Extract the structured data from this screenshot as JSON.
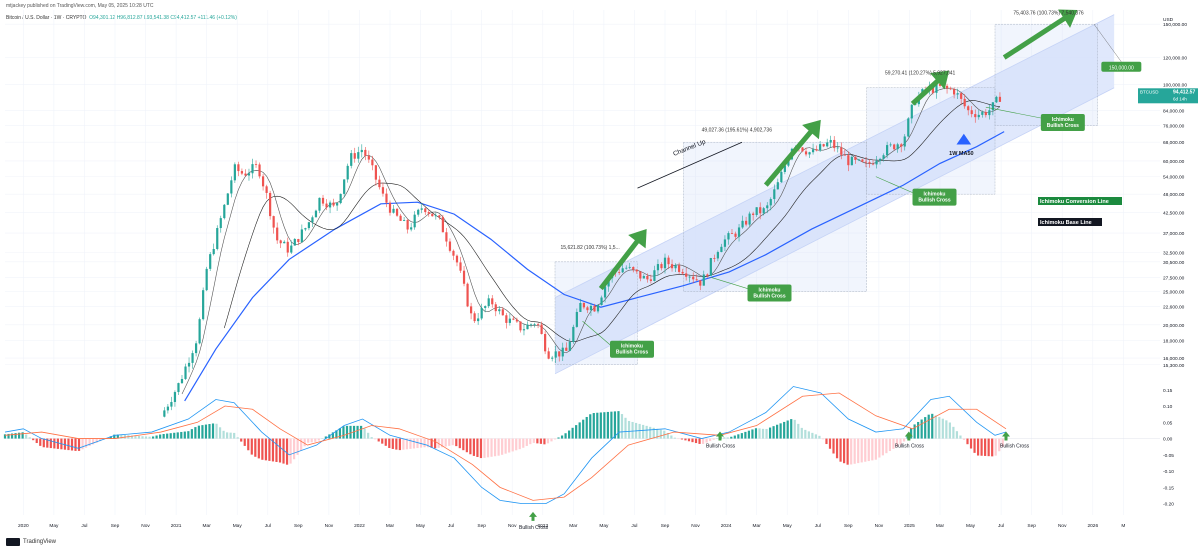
{
  "header": {
    "publisher": "mtjackey published on TradingView.com, May 05, 2025 10:28 UTC",
    "symbol_line": "Bitcoin / U.S. Dollar · 1W · CRYPTO",
    "ohlc": "O94,301.12  H96,812.87  L93,541.38  C94,412.57  +111.46 (+0.12%)"
  },
  "footer": {
    "brand": "TradingView"
  },
  "colors": {
    "up": "#26a69a",
    "down": "#ef5350",
    "ma50": "#2962ff",
    "channel": "#dbe4fb",
    "arrow": "#43a047",
    "macd": "#2196f3",
    "signal": "#ff7043"
  },
  "chart_data": {
    "type": "candlestick",
    "price_scale": "log",
    "currency": "USD",
    "y_ticks": [
      "150,000.00",
      "120,000.00",
      "100,000.00",
      "84,000.00",
      "76,000.00",
      "68,000.00",
      "60,000.00",
      "54,000.00",
      "48,000.00",
      "42,500.00",
      "37,000.00",
      "32,500.00",
      "30,500.00",
      "27,500.00",
      "25,000.00",
      "22,600.00",
      "20,000.00",
      "18,000.00",
      "16,000.00",
      "15,300.00"
    ],
    "price_tick_values": [
      150000,
      120000,
      100000,
      84000,
      76000,
      68000,
      60000,
      54000,
      48000,
      42500,
      37000,
      32500,
      30500,
      27500,
      25000,
      22600,
      20000,
      18000,
      16000,
      15300
    ],
    "x_ticks": [
      "Mar",
      "2020",
      "May",
      "Jul",
      "Sep",
      "Nov",
      "2021",
      "Mar",
      "May",
      "Jul",
      "Sep",
      "Nov",
      "2022",
      "Mar",
      "May",
      "Jul",
      "Sep",
      "Nov",
      "2023",
      "Mar",
      "May",
      "Jul",
      "Sep",
      "Nov",
      "2024",
      "Mar",
      "May",
      "Jul",
      "Sep",
      "Nov",
      "2025",
      "Mar",
      "May",
      "Jul",
      "Sep",
      "Nov",
      "2026",
      "M"
    ],
    "x_range": [
      2019.9,
      2026.2
    ],
    "y_range": [
      14000,
      165000
    ],
    "current_price": {
      "ticker": "BTCUSD",
      "value": "94,412.57",
      "sub": "6d 14h"
    },
    "close_path": [
      [
        2020.75,
        10800
      ],
      [
        2020.85,
        13500
      ],
      [
        2020.95,
        18500
      ],
      [
        2021.0,
        29000
      ],
      [
        2021.05,
        36000
      ],
      [
        2021.1,
        45000
      ],
      [
        2021.15,
        57000
      ],
      [
        2021.2,
        55000
      ],
      [
        2021.28,
        58000
      ],
      [
        2021.33,
        47000
      ],
      [
        2021.38,
        35500
      ],
      [
        2021.45,
        33000
      ],
      [
        2021.55,
        39000
      ],
      [
        2021.62,
        47000
      ],
      [
        2021.7,
        43500
      ],
      [
        2021.78,
        61000
      ],
      [
        2021.85,
        65000
      ],
      [
        2021.9,
        57000
      ],
      [
        2021.96,
        47500
      ],
      [
        2022.02,
        42000
      ],
      [
        2022.1,
        38000
      ],
      [
        2022.18,
        44500
      ],
      [
        2022.27,
        40000
      ],
      [
        2022.37,
        30000
      ],
      [
        2022.45,
        20500
      ],
      [
        2022.55,
        23500
      ],
      [
        2022.62,
        21000
      ],
      [
        2022.72,
        19500
      ],
      [
        2022.8,
        20500
      ],
      [
        2022.86,
        16500
      ],
      [
        2022.96,
        16600
      ],
      [
        2023.04,
        23000
      ],
      [
        2023.12,
        22500
      ],
      [
        2023.2,
        28000
      ],
      [
        2023.28,
        29500
      ],
      [
        2023.4,
        27000
      ],
      [
        2023.5,
        30500
      ],
      [
        2023.6,
        29000
      ],
      [
        2023.7,
        26500
      ],
      [
        2023.8,
        34500
      ],
      [
        2023.9,
        37500
      ],
      [
        2023.98,
        42500
      ],
      [
        2024.05,
        43000
      ],
      [
        2024.12,
        52000
      ],
      [
        2024.2,
        68000
      ],
      [
        2024.3,
        63000
      ],
      [
        2024.4,
        68000
      ],
      [
        2024.5,
        60000
      ],
      [
        2024.6,
        58000
      ],
      [
        2024.68,
        63500
      ],
      [
        2024.8,
        69000
      ],
      [
        2024.86,
        90000
      ],
      [
        2024.93,
        97000
      ],
      [
        2025.0,
        98000
      ],
      [
        2025.08,
        96000
      ],
      [
        2025.15,
        84000
      ],
      [
        2025.22,
        82000
      ],
      [
        2025.28,
        85000
      ],
      [
        2025.34,
        94400
      ]
    ],
    "ma50_path": [
      [
        2020.88,
        12000
      ],
      [
        2021.05,
        17000
      ],
      [
        2021.25,
        24000
      ],
      [
        2021.45,
        31000
      ],
      [
        2021.7,
        38000
      ],
      [
        2021.95,
        45000
      ],
      [
        2022.15,
        45500
      ],
      [
        2022.35,
        42000
      ],
      [
        2022.55,
        35500
      ],
      [
        2022.75,
        29000
      ],
      [
        2022.95,
        24500
      ],
      [
        2023.15,
        22500
      ],
      [
        2023.35,
        24000
      ],
      [
        2023.6,
        26000
      ],
      [
        2023.85,
        28500
      ],
      [
        2024.05,
        32000
      ],
      [
        2024.3,
        38000
      ],
      [
        2024.55,
        44000
      ],
      [
        2024.8,
        51000
      ],
      [
        2025.0,
        59000
      ],
      [
        2025.2,
        66000
      ],
      [
        2025.35,
        73000
      ]
    ],
    "channel_upper": [
      [
        2022.9,
        24000
      ],
      [
        2025.95,
        160000
      ]
    ],
    "channel_lower": [
      [
        2022.9,
        14400
      ],
      [
        2025.95,
        98000
      ]
    ],
    "annotations": [
      {
        "text": "15,621.82 (100.73%) 1,5..."
      },
      {
        "text": "49,027.36 (195.61%) 4,902,736"
      },
      {
        "text": "59,270.41 (120.27%) 5,927,041"
      },
      {
        "text": "75,403.76 (100.73%) 7,540,376"
      },
      {
        "text": "Channel Up"
      },
      {
        "text": "1W MA50"
      },
      {
        "text": "150,000.00"
      }
    ],
    "callouts": [
      "Ichimoku\nBullish Cross",
      "Ichimoku\nBullish Cross",
      "Ichimoku\nBullish Cross",
      "Ichimoku\nBullish Cross"
    ],
    "legend": [
      {
        "name": "Ichimoku Conversion Line",
        "bg": "#1b8a3e",
        "fg": "#ffffff"
      },
      {
        "name": "Ichimoku Base Line",
        "bg": "#131722",
        "fg": "#ffffff"
      }
    ],
    "macd": {
      "y_ticks": [
        "0.15",
        "0.10",
        "0.05",
        "0.00",
        "-0.05",
        "-0.10",
        "-0.15",
        "-0.20"
      ],
      "y_tick_values": [
        0.15,
        0.1,
        0.05,
        0,
        -0.05,
        -0.1,
        -0.15,
        -0.2
      ],
      "y_range": [
        -0.235,
        0.18
      ],
      "macd_path": [
        [
          2019.9,
          0.02
        ],
        [
          2020.0,
          0.03
        ],
        [
          2020.1,
          0.0
        ],
        [
          2020.3,
          -0.03
        ],
        [
          2020.5,
          0.01
        ],
        [
          2020.7,
          0.02
        ],
        [
          2020.9,
          0.06
        ],
        [
          2021.05,
          0.12
        ],
        [
          2021.15,
          0.11
        ],
        [
          2021.3,
          0.02
        ],
        [
          2021.45,
          -0.05
        ],
        [
          2021.6,
          -0.02
        ],
        [
          2021.75,
          0.04
        ],
        [
          2021.85,
          0.06
        ],
        [
          2022.0,
          0.01
        ],
        [
          2022.2,
          -0.02
        ],
        [
          2022.35,
          -0.06
        ],
        [
          2022.5,
          -0.15
        ],
        [
          2022.6,
          -0.19
        ],
        [
          2022.72,
          -0.2
        ],
        [
          2022.85,
          -0.2
        ],
        [
          2022.95,
          -0.17
        ],
        [
          2023.1,
          -0.06
        ],
        [
          2023.25,
          0.02
        ],
        [
          2023.5,
          0.03
        ],
        [
          2023.7,
          0.0
        ],
        [
          2023.85,
          0.02
        ],
        [
          2024.05,
          0.08
        ],
        [
          2024.2,
          0.16
        ],
        [
          2024.35,
          0.14
        ],
        [
          2024.5,
          0.06
        ],
        [
          2024.65,
          0.02
        ],
        [
          2024.8,
          0.03
        ],
        [
          2024.95,
          0.12
        ],
        [
          2025.05,
          0.13
        ],
        [
          2025.2,
          0.05
        ],
        [
          2025.3,
          0.01
        ],
        [
          2025.36,
          0.02
        ]
      ],
      "signal_path": [
        [
          2019.9,
          0.01
        ],
        [
          2020.1,
          0.02
        ],
        [
          2020.3,
          0.0
        ],
        [
          2020.5,
          0.0
        ],
        [
          2020.75,
          0.02
        ],
        [
          2020.95,
          0.05
        ],
        [
          2021.1,
          0.1
        ],
        [
          2021.25,
          0.09
        ],
        [
          2021.4,
          0.03
        ],
        [
          2021.55,
          -0.02
        ],
        [
          2021.75,
          0.01
        ],
        [
          2021.9,
          0.04
        ],
        [
          2022.05,
          0.03
        ],
        [
          2022.25,
          -0.01
        ],
        [
          2022.45,
          -0.08
        ],
        [
          2022.6,
          -0.15
        ],
        [
          2022.78,
          -0.19
        ],
        [
          2022.95,
          -0.18
        ],
        [
          2023.1,
          -0.12
        ],
        [
          2023.3,
          -0.02
        ],
        [
          2023.55,
          0.02
        ],
        [
          2023.8,
          0.01
        ],
        [
          2024.0,
          0.04
        ],
        [
          2024.25,
          0.13
        ],
        [
          2024.45,
          0.14
        ],
        [
          2024.65,
          0.07
        ],
        [
          2024.85,
          0.03
        ],
        [
          2025.05,
          0.09
        ],
        [
          2025.2,
          0.09
        ],
        [
          2025.36,
          0.03
        ]
      ],
      "labels": [
        "Bullish Cross",
        "Bullish Cross",
        "Bullish Cross",
        "Bullish Cross"
      ]
    }
  }
}
